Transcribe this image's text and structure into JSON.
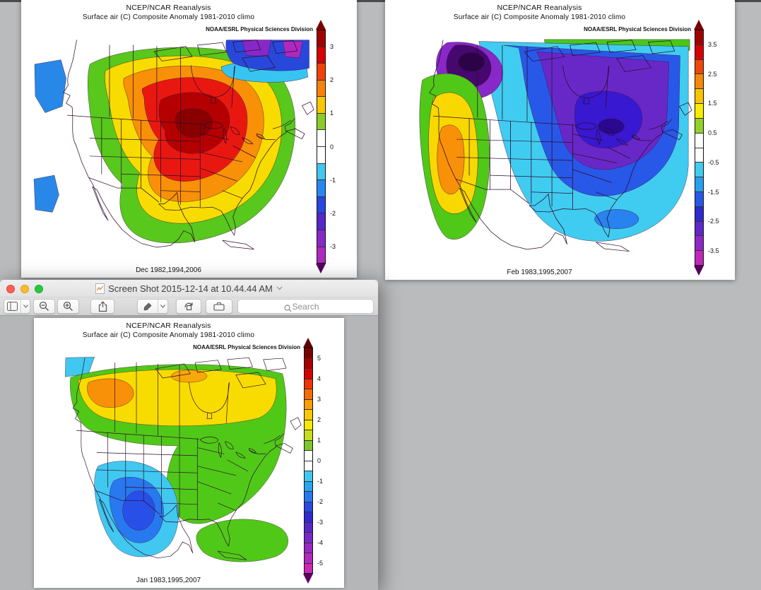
{
  "window": {
    "title": "Screen Shot 2015-12-14 at 10.44.44 AM",
    "toolbar": {
      "search_placeholder": "Search",
      "icons": [
        "sidebar-view-icon",
        "zoom-out-icon",
        "zoom-in-icon",
        "share-icon",
        "markup-pen-icon",
        "rotate-icon",
        "markup-toolbox-icon",
        "search-icon"
      ]
    }
  },
  "panels": [
    {
      "name": "dec",
      "title1": "NCEP/NCAR Reanalysis",
      "title2": "Surface air (C) Composite Anomaly 1981-2010 climo",
      "agency": "NOAA/ESRL Physical Sciences Division",
      "date_label": "Dec 1982,1994,2006",
      "colorbar": {
        "ticks": [
          "3",
          "2",
          "1",
          "0",
          "-1",
          "-2",
          "-3"
        ],
        "tick_inset": 0.0714,
        "arrow_top": "#7a0000",
        "arrow_bottom": "#57005e",
        "colors": [
          "#a30000",
          "#d80000",
          "#f04208",
          "#f88208",
          "#f8c800",
          "#8ccc28",
          "#ffffff",
          "#ffffff",
          "#40c8f0",
          "#2888f0",
          "#2846e0",
          "#5428c8",
          "#8828c8",
          "#b028c0"
        ]
      }
    },
    {
      "name": "feb",
      "title1": "NCEP/NCAR Reanalysis",
      "title2": "Surface air (C) Composite Anomaly 1981-2010 climo",
      "agency": "NOAA/ESRL Physical Sciences Division",
      "date_label": "Feb 1983,1995,2007",
      "colorbar": {
        "ticks": [
          "3.5",
          "2.5",
          "1.5",
          "0.5",
          "-0.5",
          "-1.5",
          "-2.5",
          "-3.5"
        ],
        "tick_inset": 0.0625,
        "arrow_top": "#7a0000",
        "arrow_bottom": "#57005e",
        "colors": [
          "#a30000",
          "#d80000",
          "#f04808",
          "#f88808",
          "#f8c400",
          "#f8ec00",
          "#94d028",
          "#ffffff",
          "#ffffff",
          "#40ccf0",
          "#28a0f0",
          "#2858e8",
          "#3028d0",
          "#6028c8",
          "#9028c8",
          "#c028b8"
        ]
      }
    },
    {
      "name": "jan",
      "title1": "NCEP/NCAR Reanalysis",
      "title2": "Surface air (C) Composite Anomaly 1981-2010 climo",
      "agency": "NOAA/ESRL Physical Sciences Division",
      "date_label": "Jan 1983,1995,2007",
      "colorbar": {
        "ticks": [
          "5",
          "4",
          "3",
          "2",
          "1",
          "0",
          "-1",
          "-2",
          "-3",
          "-4",
          "-5"
        ],
        "tick_inset": 0.0455,
        "arrow_top": "#5e0000",
        "arrow_bottom": "#5c0060",
        "colors": [
          "#7c0000",
          "#a80000",
          "#d40000",
          "#ee3406",
          "#f86c06",
          "#f89e06",
          "#f8c800",
          "#f8e800",
          "#c8dc20",
          "#7cc828",
          "#ffffff",
          "#ffffff",
          "#40c8f0",
          "#28a4f0",
          "#2878f0",
          "#2848e8",
          "#3028d0",
          "#5628c8",
          "#7828c8",
          "#9828c4",
          "#b428c0",
          "#cc28b4"
        ]
      }
    }
  ]
}
